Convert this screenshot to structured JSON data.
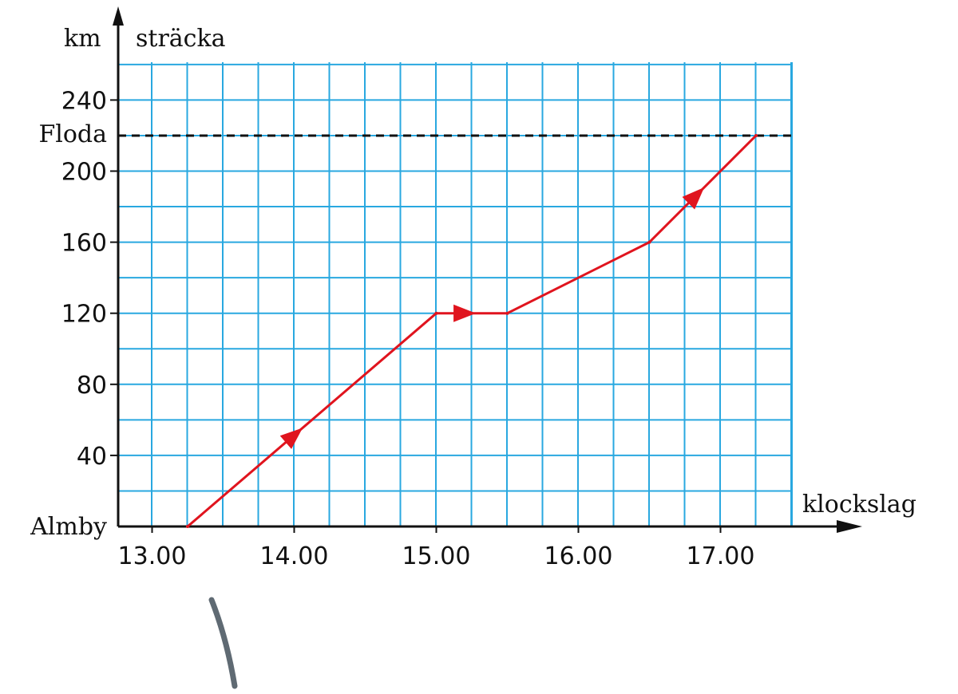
{
  "chart_data": {
    "type": "line",
    "y_unit": "km",
    "ylabel": "sträcka",
    "xlabel": "klockslag",
    "start_label": "Almby",
    "dest_label": "Floda",
    "dest_value": 220,
    "x_tick_labels": [
      "13.00",
      "14.00",
      "15.00",
      "16.00",
      "17.00"
    ],
    "x_tick_hours": [
      13,
      14,
      15,
      16,
      17
    ],
    "y_tick_labels": [
      "40",
      "80",
      "120",
      "160",
      "200",
      "240"
    ],
    "y_tick_values": [
      40,
      80,
      120,
      160,
      200,
      240
    ],
    "xlim": [
      12.75,
      17.5
    ],
    "ylim": [
      0,
      260
    ],
    "grid": true,
    "series": [
      {
        "x": [
          13.25,
          15.0,
          15.5,
          16.5,
          17.25
        ],
        "y": [
          0,
          120,
          120,
          160,
          220
        ],
        "arrows_at": [
          14.0,
          15.2,
          16.83
        ]
      }
    ],
    "colors": {
      "grid": "#29a8e0",
      "line": "#e0141e",
      "axis": "#111111",
      "annotation": "#5f6a73"
    }
  }
}
